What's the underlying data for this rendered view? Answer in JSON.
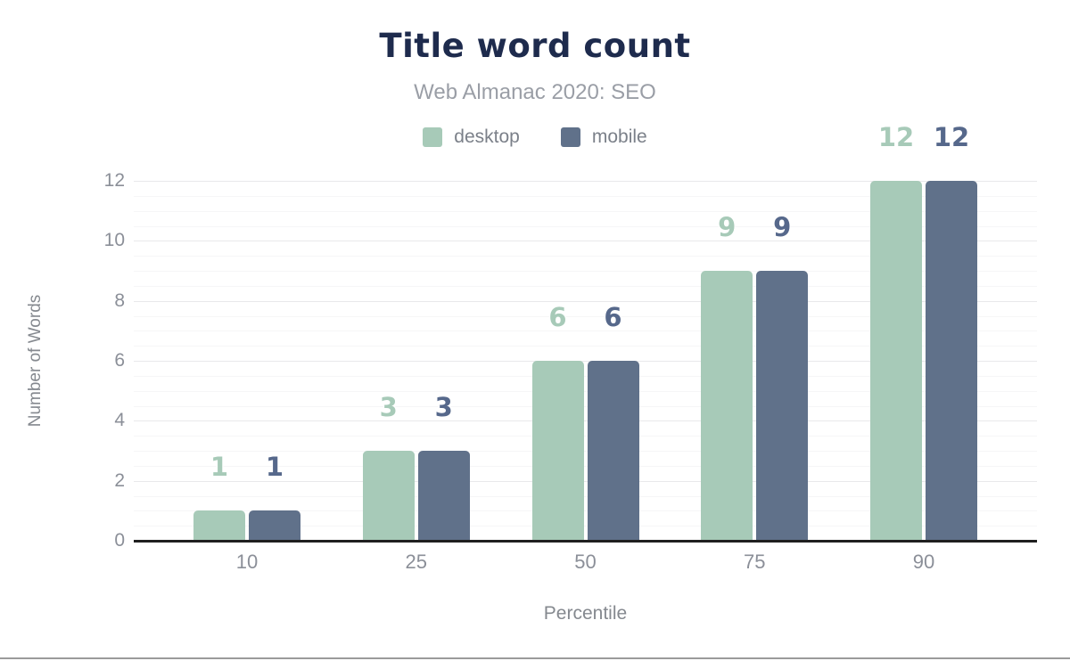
{
  "chart_data": {
    "type": "bar",
    "title": "Title word count",
    "subtitle": "Web Almanac 2020: SEO",
    "xlabel": "Percentile",
    "ylabel": "Number of Words",
    "categories": [
      "10",
      "25",
      "50",
      "75",
      "90"
    ],
    "series": [
      {
        "name": "desktop",
        "color": "#a7cab8",
        "label_color": "#a7cab8",
        "values": [
          1,
          3,
          6,
          9,
          12
        ]
      },
      {
        "name": "mobile",
        "color": "#60718a",
        "label_color": "#56688b",
        "values": [
          1,
          3,
          6,
          9,
          12
        ]
      }
    ],
    "ylim": [
      0,
      12
    ],
    "yticks": [
      0,
      2,
      4,
      6,
      8,
      10,
      12
    ],
    "grid": {
      "major_step": 2,
      "minor_step": 0.5,
      "major_color": "#e9e9eb",
      "minor_color": "#f6f6f7"
    },
    "legend_position": "top",
    "axis_line_color": "#1f1f1f"
  },
  "colors": {
    "title": "#1e2b4d",
    "subtitle": "#9a9ea6",
    "legend_text": "#7b8089",
    "tick_text": "#8b8f98",
    "axis_title_text": "#85898f",
    "bottom_divider": "#9b9b9b",
    "background": "#ffffff"
  }
}
